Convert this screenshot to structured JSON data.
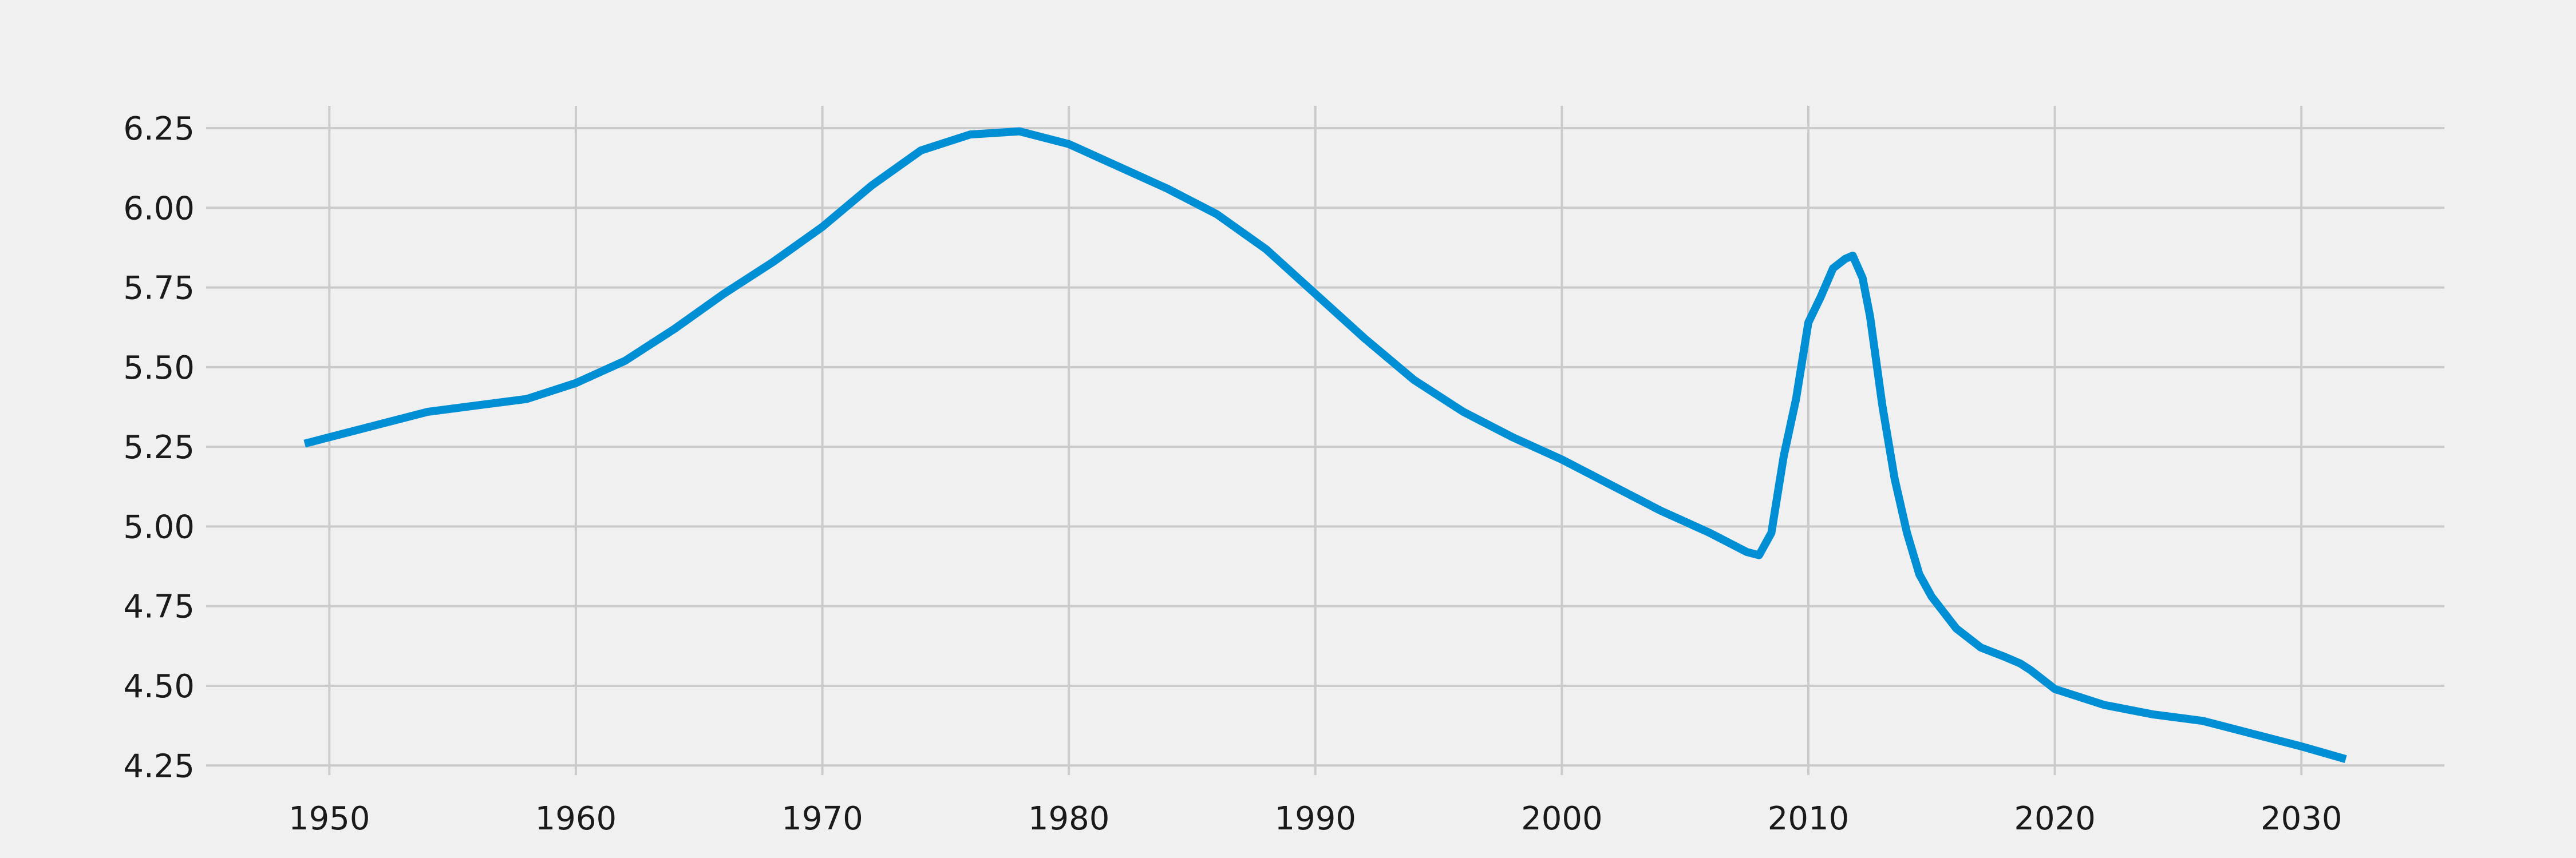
{
  "chart_data": {
    "type": "line",
    "title": "",
    "xlabel": "",
    "ylabel": "",
    "xlim": [
      1945,
      2035.8
    ],
    "ylim": [
      4.22,
      6.32
    ],
    "grid": true,
    "x_ticks": [
      1950,
      1960,
      1970,
      1980,
      1990,
      2000,
      2010,
      2020,
      2030
    ],
    "y_ticks": [
      4.25,
      4.5,
      4.75,
      5.0,
      5.25,
      5.5,
      5.75,
      6.0,
      6.25
    ],
    "y_tick_labels": [
      "4.25",
      "4.50",
      "4.75",
      "5.00",
      "5.25",
      "5.50",
      "5.75",
      "6.00",
      "6.25"
    ],
    "series": [
      {
        "color": "#008fd5",
        "x": [
          1949,
          1950,
          1952,
          1954,
          1956,
          1958,
          1960,
          1962,
          1964,
          1966,
          1968,
          1970,
          1972,
          1974,
          1976,
          1978,
          1980,
          1982,
          1984,
          1986,
          1988,
          1990,
          1992,
          1994,
          1996,
          1998,
          2000,
          2002,
          2004,
          2006,
          2007.5,
          2008,
          2008.5,
          2009,
          2009.5,
          2010,
          2010.5,
          2011,
          2011.5,
          2011.8,
          2012.2,
          2012.5,
          2013,
          2013.5,
          2014,
          2014.5,
          2015,
          2016,
          2017,
          2018,
          2018.6,
          2019,
          2020,
          2022,
          2024,
          2026,
          2028,
          2030,
          2031.8
        ],
        "y": [
          5.26,
          5.28,
          5.32,
          5.36,
          5.38,
          5.4,
          5.45,
          5.52,
          5.62,
          5.73,
          5.83,
          5.94,
          6.07,
          6.18,
          6.23,
          6.24,
          6.2,
          6.13,
          6.06,
          5.98,
          5.87,
          5.73,
          5.59,
          5.46,
          5.36,
          5.28,
          5.21,
          5.13,
          5.05,
          4.98,
          4.92,
          4.91,
          4.98,
          5.22,
          5.4,
          5.64,
          5.72,
          5.81,
          5.84,
          5.85,
          5.78,
          5.66,
          5.38,
          5.15,
          4.98,
          4.85,
          4.78,
          4.68,
          4.62,
          4.59,
          4.57,
          4.55,
          4.49,
          4.44,
          4.41,
          4.39,
          4.35,
          4.31,
          4.27
        ]
      }
    ]
  }
}
